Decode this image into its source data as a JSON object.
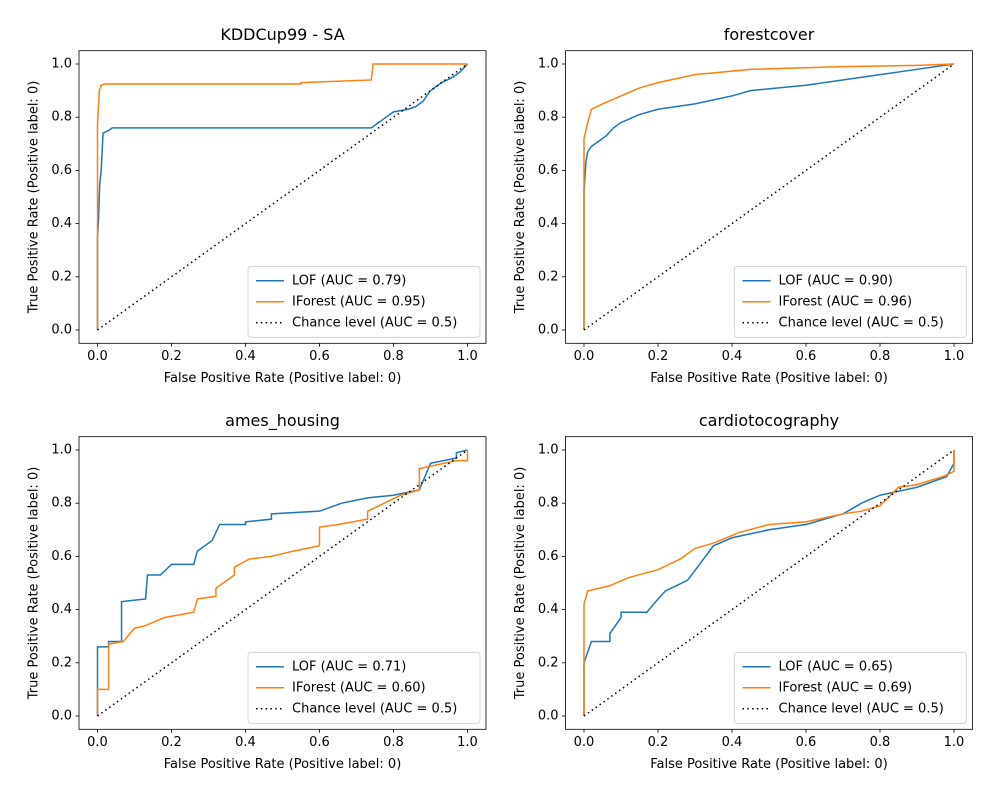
{
  "chart_data": [
    {
      "type": "line",
      "title": "KDDCup99 - SA",
      "xlabel": "False Positive Rate (Positive label: 0)",
      "ylabel": "True Positive Rate (Positive label: 0)",
      "xlim": [
        -0.05,
        1.05
      ],
      "ylim": [
        -0.05,
        1.05
      ],
      "xticks": [
        {
          "value": 0,
          "label": "0.0"
        },
        {
          "value": 0.2,
          "label": "0.2"
        },
        {
          "value": 0.4,
          "label": "0.4"
        },
        {
          "value": 0.6,
          "label": "0.6"
        },
        {
          "value": 0.8,
          "label": "0.8"
        },
        {
          "value": 1,
          "label": "1.0"
        }
      ],
      "yticks": [
        {
          "value": 0,
          "label": "0.0"
        },
        {
          "value": 0.2,
          "label": "0.2"
        },
        {
          "value": 0.4,
          "label": "0.4"
        },
        {
          "value": 0.6,
          "label": "0.6"
        },
        {
          "value": 0.8,
          "label": "0.8"
        },
        {
          "value": 1,
          "label": "1.0"
        }
      ],
      "legend": "lower right",
      "series": [
        {
          "name": "LOF (AUC = 0.79)",
          "color": "#1f77b4",
          "linestyle": "solid",
          "x": [
            0,
            0,
            0.003,
            0.006,
            0.01,
            0.015,
            0.03,
            0.04,
            0.74,
            0.76,
            0.78,
            0.8,
            0.84,
            0.86,
            0.88,
            0.9,
            0.93,
            0.96,
            0.98,
            1
          ],
          "values": [
            0,
            0.35,
            0.42,
            0.55,
            0.6,
            0.74,
            0.75,
            0.76,
            0.76,
            0.78,
            0.8,
            0.82,
            0.83,
            0.84,
            0.86,
            0.9,
            0.93,
            0.95,
            0.97,
            1
          ]
        },
        {
          "name": "IForest (AUC = 0.95)",
          "color": "#ff7f0e",
          "linestyle": "solid",
          "x": [
            0,
            0,
            0.005,
            0.01,
            0.02,
            0.55,
            0.55,
            0.74,
            0.745,
            1
          ],
          "values": [
            0,
            0.77,
            0.9,
            0.92,
            0.925,
            0.925,
            0.93,
            0.94,
            1,
            1
          ]
        },
        {
          "name": "Chance level (AUC = 0.5)",
          "color": "#000000",
          "linestyle": "dotted",
          "x": [
            0,
            1
          ],
          "values": [
            0,
            1
          ]
        }
      ]
    },
    {
      "type": "line",
      "title": "forestcover",
      "xlabel": "False Positive Rate (Positive label: 0)",
      "ylabel": "True Positive Rate (Positive label: 0)",
      "xlim": [
        -0.05,
        1.05
      ],
      "ylim": [
        -0.05,
        1.05
      ],
      "xticks": [
        {
          "value": 0,
          "label": "0.0"
        },
        {
          "value": 0.2,
          "label": "0.2"
        },
        {
          "value": 0.4,
          "label": "0.4"
        },
        {
          "value": 0.6,
          "label": "0.6"
        },
        {
          "value": 0.8,
          "label": "0.8"
        },
        {
          "value": 1,
          "label": "1.0"
        }
      ],
      "yticks": [
        {
          "value": 0,
          "label": "0.0"
        },
        {
          "value": 0.2,
          "label": "0.2"
        },
        {
          "value": 0.4,
          "label": "0.4"
        },
        {
          "value": 0.6,
          "label": "0.6"
        },
        {
          "value": 0.8,
          "label": "0.8"
        },
        {
          "value": 1,
          "label": "1.0"
        }
      ],
      "legend": "lower right",
      "series": [
        {
          "name": "LOF (AUC = 0.90)",
          "color": "#1f77b4",
          "linestyle": "solid",
          "x": [
            0,
            0,
            0.005,
            0.01,
            0.02,
            0.04,
            0.06,
            0.08,
            0.1,
            0.15,
            0.2,
            0.3,
            0.4,
            0.45,
            0.6,
            0.8,
            0.9,
            1
          ],
          "values": [
            0,
            0.52,
            0.63,
            0.67,
            0.69,
            0.71,
            0.73,
            0.76,
            0.78,
            0.81,
            0.83,
            0.85,
            0.88,
            0.9,
            0.92,
            0.96,
            0.98,
            1
          ]
        },
        {
          "name": "IForest (AUC = 0.96)",
          "color": "#ff7f0e",
          "linestyle": "solid",
          "x": [
            0,
            0,
            0.01,
            0.02,
            0.05,
            0.1,
            0.15,
            0.2,
            0.3,
            0.45,
            0.7,
            0.9,
            1
          ],
          "values": [
            0,
            0.72,
            0.78,
            0.83,
            0.85,
            0.88,
            0.91,
            0.93,
            0.96,
            0.98,
            0.99,
            0.995,
            1
          ]
        },
        {
          "name": "Chance level (AUC = 0.5)",
          "color": "#000000",
          "linestyle": "dotted",
          "x": [
            0,
            1
          ],
          "values": [
            0,
            1
          ]
        }
      ]
    },
    {
      "type": "line",
      "title": "ames_housing",
      "xlabel": "False Positive Rate (Positive label: 0)",
      "ylabel": "True Positive Rate (Positive label: 0)",
      "xlim": [
        -0.05,
        1.05
      ],
      "ylim": [
        -0.05,
        1.05
      ],
      "xticks": [
        {
          "value": 0,
          "label": "0.0"
        },
        {
          "value": 0.2,
          "label": "0.2"
        },
        {
          "value": 0.4,
          "label": "0.4"
        },
        {
          "value": 0.6,
          "label": "0.6"
        },
        {
          "value": 0.8,
          "label": "0.8"
        },
        {
          "value": 1,
          "label": "1.0"
        }
      ],
      "yticks": [
        {
          "value": 0,
          "label": "0.0"
        },
        {
          "value": 0.2,
          "label": "0.2"
        },
        {
          "value": 0.4,
          "label": "0.4"
        },
        {
          "value": 0.6,
          "label": "0.6"
        },
        {
          "value": 0.8,
          "label": "0.8"
        },
        {
          "value": 1,
          "label": "1.0"
        }
      ],
      "legend": "lower right",
      "series": [
        {
          "name": "LOF (AUC = 0.71)",
          "color": "#1f77b4",
          "linestyle": "solid",
          "x": [
            0,
            0,
            0.03,
            0.03,
            0.065,
            0.065,
            0.13,
            0.135,
            0.17,
            0.2,
            0.26,
            0.27,
            0.31,
            0.33,
            0.4,
            0.4,
            0.47,
            0.47,
            0.6,
            0.66,
            0.73,
            0.8,
            0.87,
            0.9,
            0.97,
            0.97,
            1
          ],
          "values": [
            0,
            0.26,
            0.26,
            0.28,
            0.28,
            0.43,
            0.44,
            0.53,
            0.53,
            0.57,
            0.57,
            0.62,
            0.66,
            0.72,
            0.72,
            0.73,
            0.74,
            0.76,
            0.77,
            0.8,
            0.82,
            0.83,
            0.85,
            0.95,
            0.97,
            0.99,
            1
          ]
        },
        {
          "name": "IForest (AUC = 0.60)",
          "color": "#ff7f0e",
          "linestyle": "solid",
          "x": [
            0,
            0,
            0.03,
            0.03,
            0.07,
            0.1,
            0.13,
            0.18,
            0.26,
            0.27,
            0.32,
            0.32,
            0.37,
            0.37,
            0.41,
            0.47,
            0.53,
            0.6,
            0.6,
            0.65,
            0.73,
            0.73,
            0.82,
            0.87,
            0.87,
            0.97,
            1,
            1
          ],
          "values": [
            0,
            0.1,
            0.1,
            0.27,
            0.28,
            0.33,
            0.34,
            0.37,
            0.39,
            0.44,
            0.45,
            0.48,
            0.53,
            0.56,
            0.59,
            0.6,
            0.62,
            0.64,
            0.71,
            0.72,
            0.74,
            0.77,
            0.83,
            0.85,
            0.93,
            0.96,
            0.96,
            1
          ]
        },
        {
          "name": "Chance level (AUC = 0.5)",
          "color": "#000000",
          "linestyle": "dotted",
          "x": [
            0,
            1
          ],
          "values": [
            0,
            1
          ]
        }
      ]
    },
    {
      "type": "line",
      "title": "cardiotocography",
      "xlabel": "False Positive Rate (Positive label: 0)",
      "ylabel": "True Positive Rate (Positive label: 0)",
      "xlim": [
        -0.05,
        1.05
      ],
      "ylim": [
        -0.05,
        1.05
      ],
      "xticks": [
        {
          "value": 0,
          "label": "0.0"
        },
        {
          "value": 0.2,
          "label": "0.2"
        },
        {
          "value": 0.4,
          "label": "0.4"
        },
        {
          "value": 0.6,
          "label": "0.6"
        },
        {
          "value": 0.8,
          "label": "0.8"
        },
        {
          "value": 1,
          "label": "1.0"
        }
      ],
      "yticks": [
        {
          "value": 0,
          "label": "0.0"
        },
        {
          "value": 0.2,
          "label": "0.2"
        },
        {
          "value": 0.4,
          "label": "0.4"
        },
        {
          "value": 0.6,
          "label": "0.6"
        },
        {
          "value": 0.8,
          "label": "0.8"
        },
        {
          "value": 1,
          "label": "1.0"
        }
      ],
      "legend": "lower right",
      "series": [
        {
          "name": "LOF (AUC = 0.65)",
          "color": "#1f77b4",
          "linestyle": "solid",
          "x": [
            0,
            0,
            0.02,
            0.07,
            0.07,
            0.1,
            0.1,
            0.17,
            0.2,
            0.22,
            0.28,
            0.35,
            0.4,
            0.5,
            0.6,
            0.7,
            0.75,
            0.8,
            0.9,
            0.98,
            1,
            1
          ],
          "values": [
            0,
            0.2,
            0.28,
            0.28,
            0.31,
            0.37,
            0.39,
            0.39,
            0.44,
            0.47,
            0.51,
            0.64,
            0.67,
            0.7,
            0.72,
            0.76,
            0.8,
            0.83,
            0.86,
            0.9,
            0.95,
            1
          ]
        },
        {
          "name": "IForest (AUC = 0.69)",
          "color": "#ff7f0e",
          "linestyle": "solid",
          "x": [
            0,
            0,
            0.01,
            0.07,
            0.12,
            0.2,
            0.26,
            0.3,
            0.35,
            0.42,
            0.5,
            0.6,
            0.7,
            0.75,
            0.8,
            0.85,
            0.9,
            0.97,
            1,
            1
          ],
          "values": [
            0,
            0.42,
            0.47,
            0.49,
            0.52,
            0.55,
            0.59,
            0.63,
            0.65,
            0.69,
            0.72,
            0.73,
            0.76,
            0.77,
            0.79,
            0.86,
            0.87,
            0.9,
            0.92,
            1
          ]
        },
        {
          "name": "Chance level (AUC = 0.5)",
          "color": "#000000",
          "linestyle": "dotted",
          "x": [
            0,
            1
          ],
          "values": [
            0,
            1
          ]
        }
      ]
    }
  ]
}
